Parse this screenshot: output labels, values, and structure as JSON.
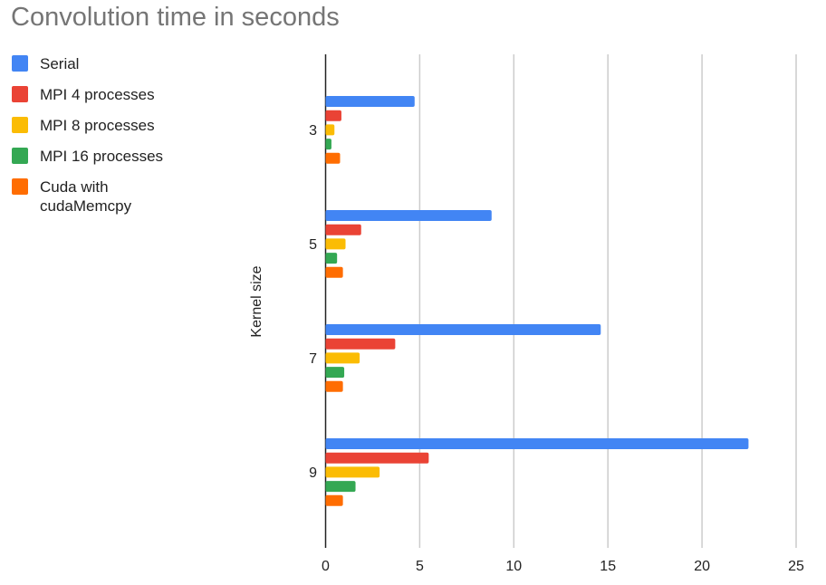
{
  "chart_data": {
    "type": "bar",
    "orientation": "horizontal",
    "title": "Convolution time in seconds",
    "xlabel": "",
    "ylabel": "Kernel size",
    "categories": [
      "3",
      "5",
      "7",
      "9"
    ],
    "xlim": [
      0,
      25
    ],
    "xticks": [
      "0",
      "5",
      "10",
      "15",
      "20",
      "25"
    ],
    "grid": true,
    "legend_position": "left",
    "series": [
      {
        "name": "Serial",
        "color": "#4285f4",
        "values": [
          4.73,
          8.82,
          14.62,
          22.47
        ]
      },
      {
        "name": "MPI 4 processes",
        "color": "#ea4335",
        "values": [
          0.84,
          1.89,
          3.7,
          5.48
        ]
      },
      {
        "name": "MPI 8 processes",
        "color": "#fbbc04",
        "values": [
          0.47,
          1.06,
          1.81,
          2.87
        ]
      },
      {
        "name": "MPI 16 processes",
        "color": "#34a853",
        "values": [
          0.31,
          0.61,
          0.99,
          1.59
        ]
      },
      {
        "name": "Cuda with cudaMemcpy",
        "color": "#ff6d01",
        "values": [
          0.77,
          0.92,
          0.92,
          0.92
        ]
      }
    ]
  }
}
